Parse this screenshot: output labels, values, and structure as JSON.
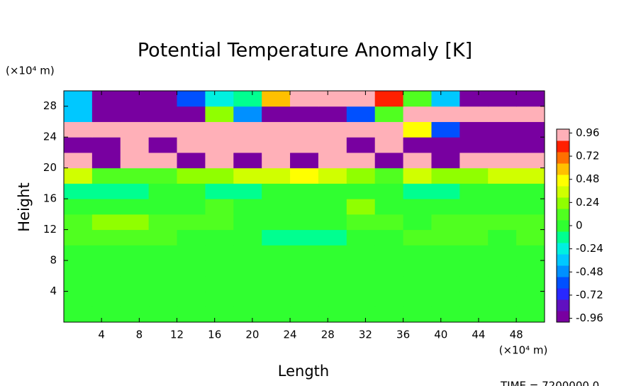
{
  "chart_data": {
    "type": "heatmap",
    "title": "Potential Temperature Anomaly [K]",
    "x_label": "Length",
    "y_label": "Height",
    "x_unit": "(×10⁴ m)",
    "y_unit": "(×10⁴ m)",
    "footer": "TIME = 7200000.0",
    "xbins": [
      0,
      3,
      6,
      9,
      12,
      15,
      18,
      21,
      24,
      27,
      30,
      33,
      36,
      39,
      42,
      45,
      48,
      51
    ],
    "ybins": [
      0,
      2,
      4,
      6,
      8,
      10,
      12,
      14,
      16,
      18,
      20,
      22,
      24,
      26,
      28,
      30
    ],
    "xlim": [
      0,
      51
    ],
    "ylim": [
      0,
      30
    ],
    "xticks": [
      4,
      8,
      12,
      16,
      20,
      24,
      28,
      32,
      36,
      40,
      44,
      48
    ],
    "yticks": [
      4,
      8,
      12,
      16,
      20,
      24,
      28
    ],
    "clim": [
      -1,
      1
    ],
    "cticks": [
      -0.96,
      -0.72,
      -0.48,
      -0.24,
      0,
      0.24,
      0.48,
      0.72,
      0.96
    ],
    "colormap": [
      "#7800a0",
      "#6010c0",
      "#2828ff",
      "#0050ff",
      "#0090ff",
      "#00c8ff",
      "#00f0e0",
      "#00ff90",
      "#30ff30",
      "#50ff20",
      "#90ff00",
      "#d0ff00",
      "#ffff00",
      "#ffc000",
      "#ff7000",
      "#ff2000",
      "#ffb0b8"
    ],
    "z": [
      [
        0.02,
        0.02,
        0.03,
        0.02,
        0.02,
        0.03,
        0.02,
        0.02,
        0.02,
        0.02,
        0.02,
        0.03,
        0.02,
        0.02,
        0.02,
        0.02,
        0.02
      ],
      [
        0.03,
        0.02,
        0.02,
        0.03,
        0.02,
        0.02,
        0.02,
        0.03,
        0.02,
        0.02,
        0.03,
        0.02,
        0.02,
        0.02,
        0.03,
        0.02,
        0.02
      ],
      [
        0.02,
        0.03,
        0.02,
        0.02,
        0.04,
        0.02,
        0.02,
        0.02,
        0.03,
        0.02,
        0.02,
        0.02,
        0.04,
        0.02,
        0.02,
        0.03,
        0.02
      ],
      [
        0.03,
        0.02,
        0.02,
        0.02,
        0.02,
        0.03,
        0.02,
        0.02,
        0.02,
        0.03,
        0.02,
        0.02,
        0.02,
        0.02,
        0.03,
        0.02,
        0.02
      ],
      [
        0.04,
        0.03,
        0.02,
        0.03,
        0.02,
        0.02,
        0.03,
        0.02,
        0.02,
        0.02,
        0.03,
        0.02,
        0.02,
        0.03,
        0.02,
        0.02,
        0.03
      ],
      [
        0.1,
        0.12,
        0.08,
        0.15,
        0.05,
        0.02,
        -0.05,
        -0.1,
        -0.15,
        -0.08,
        0.02,
        0.05,
        0.1,
        0.08,
        0.12,
        0.05,
        0.08
      ],
      [
        0.15,
        0.18,
        0.2,
        0.12,
        0.08,
        0.1,
        0.05,
        0.02,
        -0.02,
        0.05,
        0.08,
        0.1,
        0.05,
        0.08,
        0.1,
        0.06,
        0.1
      ],
      [
        0.05,
        0.02,
        -0.05,
        0.02,
        0.05,
        0.08,
        0.02,
        -0.03,
        0.05,
        0.02,
        0.25,
        0.05,
        0.02,
        0.05,
        0.02,
        0.04,
        0.02
      ],
      [
        -0.1,
        -0.15,
        -0.08,
        -0.05,
        0.02,
        -0.1,
        -0.12,
        -0.05,
        0.02,
        0.05,
        0.02,
        -0.05,
        -0.08,
        -0.1,
        -0.05,
        0.02,
        0.05
      ],
      [
        0.3,
        0.1,
        0.15,
        0.1,
        0.2,
        0.25,
        0.4,
        0.35,
        0.5,
        0.3,
        0.2,
        0.15,
        0.3,
        0.2,
        0.25,
        0.3,
        0.4
      ],
      [
        1,
        -1,
        1,
        1,
        -1,
        1,
        -1,
        1,
        -1,
        1,
        1,
        -1,
        1,
        -1,
        1,
        1,
        1
      ],
      [
        -1,
        -1,
        1,
        -1,
        1,
        1,
        1,
        1,
        1,
        1,
        -1,
        1,
        -1,
        -1,
        -1,
        -1,
        -1
      ],
      [
        1,
        1,
        1,
        1,
        1,
        1,
        1,
        1,
        1,
        1,
        1,
        1,
        0.5,
        -0.6,
        -1,
        -1,
        -1
      ],
      [
        -0.3,
        -1,
        -1,
        -1,
        -1,
        0.2,
        -0.5,
        -1,
        -1,
        -1,
        -0.6,
        0.1,
        1,
        1,
        1,
        1,
        1
      ],
      [
        -0.4,
        -1,
        -1,
        -1,
        -0.6,
        -0.2,
        -0.1,
        0.6,
        1,
        1,
        1,
        0.8,
        0.1,
        -0.3,
        -1,
        -1,
        -1
      ]
    ]
  }
}
